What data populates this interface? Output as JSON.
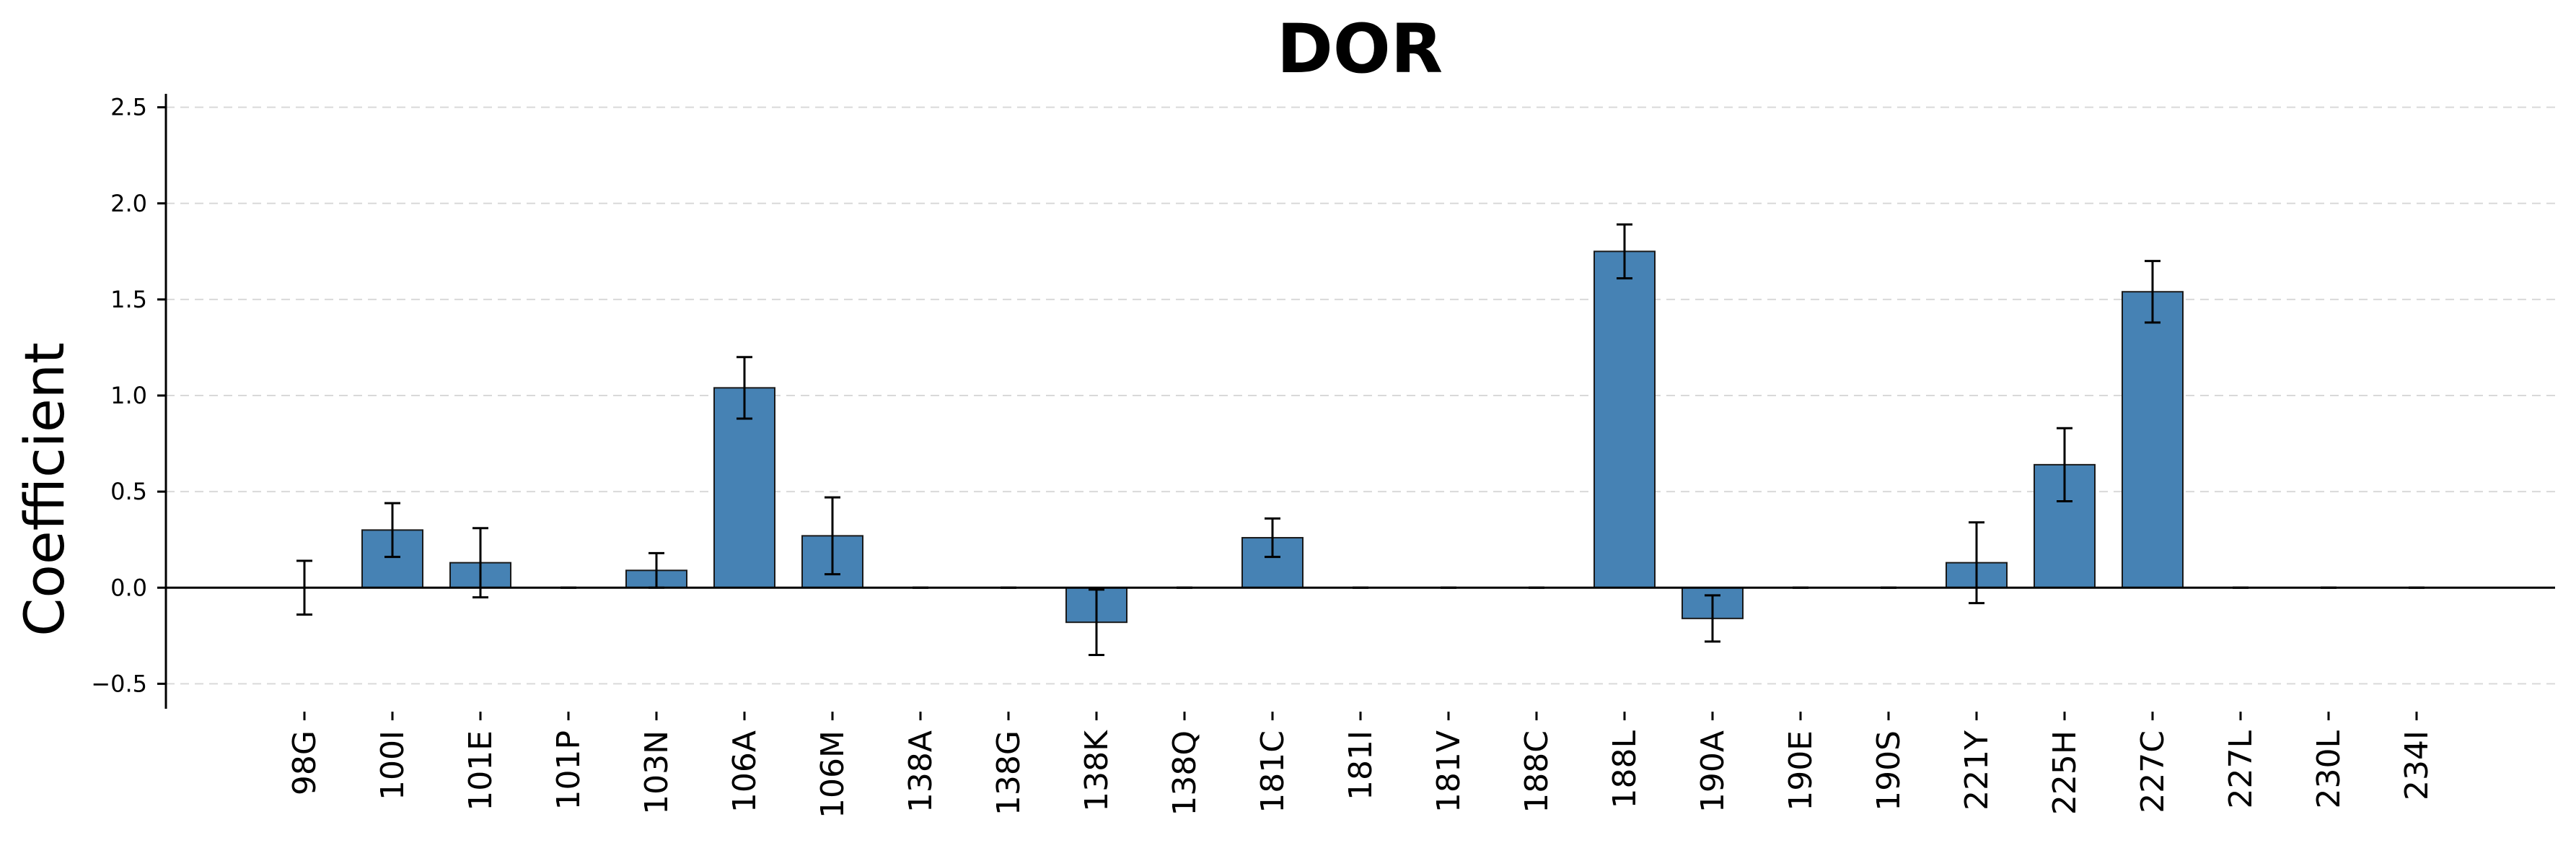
{
  "chart_data": {
    "type": "bar",
    "title": "DOR",
    "xlabel": "",
    "ylabel": "Coefficient",
    "ylim": [
      -0.63,
      2.57
    ],
    "yticks": [
      -0.5,
      0.0,
      0.5,
      1.0,
      1.5,
      2.0,
      2.5
    ],
    "ytick_labels": [
      "−0.5",
      "0.0",
      "0.5",
      "1.0",
      "1.5",
      "2.0",
      "2.5"
    ],
    "grid": true,
    "legend": "none",
    "bar_color": "#4682b4",
    "categories": [
      "98G",
      "100I",
      "101E",
      "101P",
      "103N",
      "106A",
      "106M",
      "138A",
      "138G",
      "138K",
      "138Q",
      "181C",
      "181I",
      "181V",
      "188C",
      "188L",
      "190A",
      "190E",
      "190S",
      "221Y",
      "225H",
      "227C",
      "227L",
      "230L",
      "234I"
    ],
    "values": [
      0.0,
      0.3,
      0.13,
      0.0,
      0.09,
      1.04,
      0.27,
      0.0,
      0.0,
      -0.18,
      0.0,
      0.26,
      0.0,
      0.0,
      0.0,
      1.75,
      -0.16,
      0.0,
      0.0,
      0.13,
      0.64,
      1.54,
      0.0,
      0.0,
      0.0
    ],
    "errors": [
      0.14,
      0.14,
      0.18,
      0.0,
      0.09,
      0.16,
      0.2,
      0.0,
      0.0,
      0.17,
      0.0,
      0.1,
      0.0,
      0.0,
      0.0,
      0.14,
      0.12,
      0.0,
      0.0,
      0.21,
      0.19,
      0.16,
      0.0,
      0.0,
      0.0
    ]
  }
}
